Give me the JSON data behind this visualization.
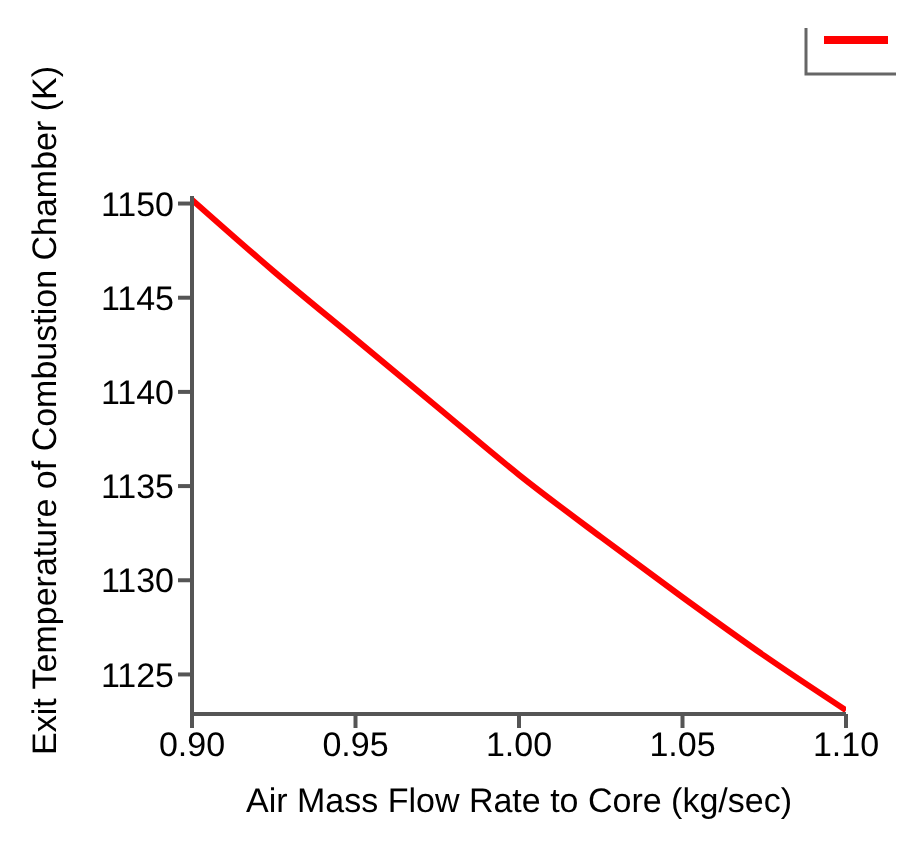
{
  "chart_data": {
    "type": "line",
    "xlabel": "Air Mass Flow Rate to Core (kg/sec)",
    "ylabel": "Exit Temperature of Combustion Chamber (K)",
    "x": [
      0.9,
      0.925,
      0.95,
      0.975,
      1.0,
      1.025,
      1.05,
      1.075,
      1.1
    ],
    "series": [
      {
        "color": "#ff0000",
        "values": [
          1150.2,
          1146.4,
          1142.8,
          1139.2,
          1135.6,
          1132.3,
          1129.1,
          1126.0,
          1123.1
        ]
      }
    ],
    "xlim": [
      0.9,
      1.1
    ],
    "xticks": [
      {
        "value": 0.9,
        "label": "0.90"
      },
      {
        "value": 0.95,
        "label": "0.95"
      },
      {
        "value": 1.0,
        "label": "1.00"
      },
      {
        "value": 1.05,
        "label": "1.05"
      },
      {
        "value": 1.1,
        "label": "1.10"
      }
    ],
    "ylim": [
      1122.9,
      1150.4
    ],
    "yticks": [
      1125,
      1130,
      1135,
      1140,
      1145,
      1150
    ],
    "grid": false,
    "marker": "none",
    "line_style": "solid"
  }
}
